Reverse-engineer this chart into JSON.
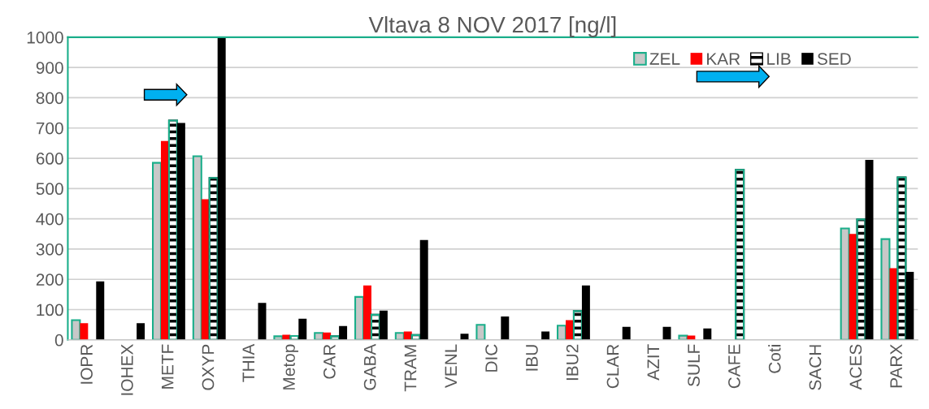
{
  "chart_data": {
    "type": "bar",
    "title": "Vltava 8 NOV 2017 [ng/l]",
    "categories": [
      "IOPR",
      "IOHEX",
      "METF",
      "OXYP",
      "THIA",
      "Metop",
      "CAR",
      "GABA",
      "TRAM",
      "VENL",
      "DIC",
      "IBU",
      "IBU2",
      "CLAR",
      "AZIT",
      "SULF",
      "CAFE",
      "Coti",
      "SACH",
      "ACES",
      "PARX"
    ],
    "series": [
      {
        "name": "ZEL",
        "color": "#c8c8c8",
        "values": [
          65,
          null,
          585,
          607,
          null,
          12,
          23,
          142,
          23,
          null,
          50,
          null,
          47,
          null,
          null,
          14,
          null,
          null,
          null,
          368,
          333
        ]
      },
      {
        "name": "KAR",
        "color": "#ff0000",
        "values": [
          55,
          null,
          657,
          465,
          null,
          17,
          24,
          180,
          28,
          null,
          null,
          null,
          65,
          null,
          null,
          14,
          null,
          null,
          null,
          350,
          237
        ]
      },
      {
        "name": "LIB",
        "color": "#000000",
        "values": [
          null,
          null,
          725,
          535,
          null,
          13,
          12,
          83,
          16,
          null,
          null,
          null,
          95,
          null,
          null,
          null,
          562,
          null,
          null,
          398,
          537
        ]
      },
      {
        "name": "SED",
        "color": "#000000",
        "values": [
          193,
          55,
          717,
          1000,
          122,
          70,
          46,
          97,
          330,
          20,
          77,
          28,
          180,
          43,
          43,
          38,
          null,
          null,
          null,
          595,
          225
        ]
      }
    ],
    "ylim": [
      0,
      1000
    ],
    "yticks": [
      0,
      100,
      200,
      300,
      400,
      500,
      600,
      700,
      800,
      900,
      1000
    ],
    "grid": "y",
    "legend": "top right"
  }
}
